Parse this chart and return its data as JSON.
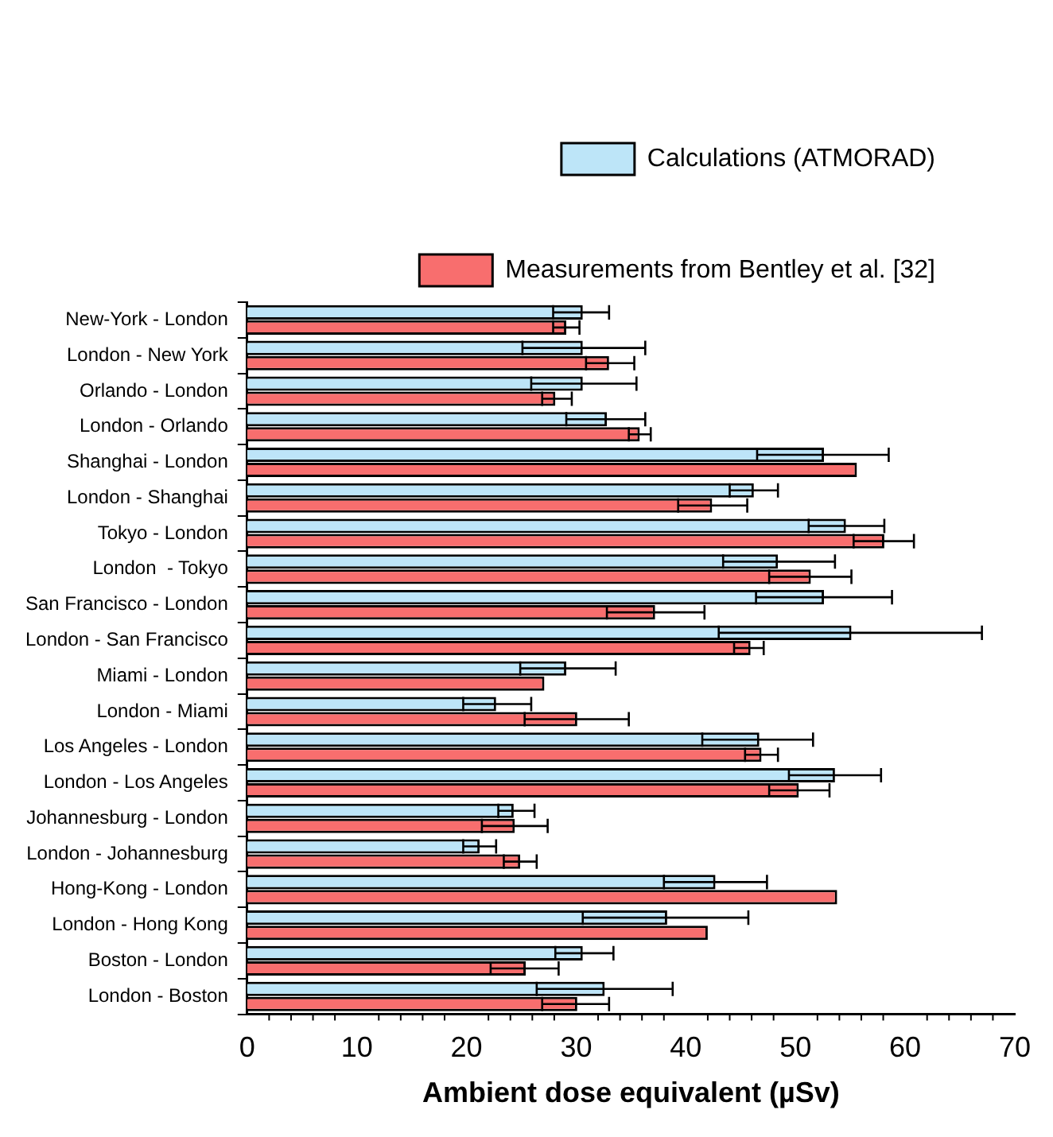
{
  "chart_data": {
    "type": "bar",
    "orientation": "horizontal",
    "xlabel": "Ambient dose equivalent (µSv)",
    "categories": [
      "New-York - London",
      "London - New York",
      "Orlando - London",
      "London - Orlando",
      "Shanghai - London",
      "London - Shanghai",
      "Tokyo - London",
      "London  - Tokyo",
      "San Francisco - London",
      "London - San Francisco",
      "Miami - London",
      "London - Miami",
      "Los Angeles - London",
      "London - Los Angeles",
      "Johannesburg - London",
      "London - Johannesburg",
      "Hong-Kong - London",
      "London - Hong Kong",
      "Boston - London",
      "London - Boston"
    ],
    "series": [
      {
        "name": "Calculations (ATMORAD)",
        "color": "#bde5f8",
        "values": [
          30.6,
          30.6,
          30.6,
          32.8,
          52.6,
          46.2,
          54.6,
          48.4,
          52.6,
          55.1,
          29.1,
          22.7,
          46.7,
          53.6,
          24.3,
          21.2,
          42.7,
          38.3,
          30.6,
          32.6
        ],
        "errors": [
          [
            27.9,
            33.0
          ],
          [
            25.1,
            36.3
          ],
          [
            25.9,
            35.5
          ],
          [
            29.1,
            36.3
          ],
          [
            46.5,
            58.5
          ],
          [
            44.0,
            48.4
          ],
          [
            51.2,
            58.1
          ],
          [
            43.4,
            53.6
          ],
          [
            46.4,
            58.8
          ],
          [
            43.0,
            67.0
          ],
          [
            24.9,
            33.6
          ],
          [
            19.7,
            25.9
          ],
          [
            41.5,
            51.6
          ],
          [
            49.4,
            57.8
          ],
          [
            22.9,
            26.2
          ],
          [
            19.7,
            22.7
          ],
          [
            38.0,
            47.4
          ],
          [
            30.6,
            45.7
          ],
          [
            28.1,
            33.4
          ],
          [
            26.4,
            38.8
          ]
        ]
      },
      {
        "name": "Measurements from Bentley et al. [32]",
        "color": "#f86e6e",
        "values": [
          29.1,
          33.0,
          28.1,
          35.8,
          55.6,
          42.4,
          58.1,
          51.4,
          37.2,
          45.9,
          27.1,
          30.1,
          46.9,
          50.3,
          24.4,
          24.9,
          53.8,
          42.0,
          25.4,
          30.1
        ],
        "errors": [
          [
            27.9,
            30.3
          ],
          [
            30.9,
            35.3
          ],
          [
            26.9,
            29.6
          ],
          [
            34.8,
            36.8
          ],
          null,
          [
            39.3,
            45.6
          ],
          [
            55.3,
            60.8
          ],
          [
            47.6,
            55.1
          ],
          [
            32.8,
            41.7
          ],
          [
            44.4,
            47.1
          ],
          null,
          [
            25.3,
            34.8
          ],
          [
            45.4,
            48.4
          ],
          [
            47.6,
            53.1
          ],
          [
            21.4,
            27.4
          ],
          [
            23.4,
            26.4
          ],
          null,
          null,
          [
            22.2,
            28.4
          ],
          [
            26.9,
            33.0
          ]
        ]
      }
    ],
    "xlim": [
      0,
      70
    ],
    "xticks": [
      0,
      10,
      20,
      30,
      40,
      50,
      60,
      70
    ],
    "grid": false,
    "legend": "top right"
  }
}
